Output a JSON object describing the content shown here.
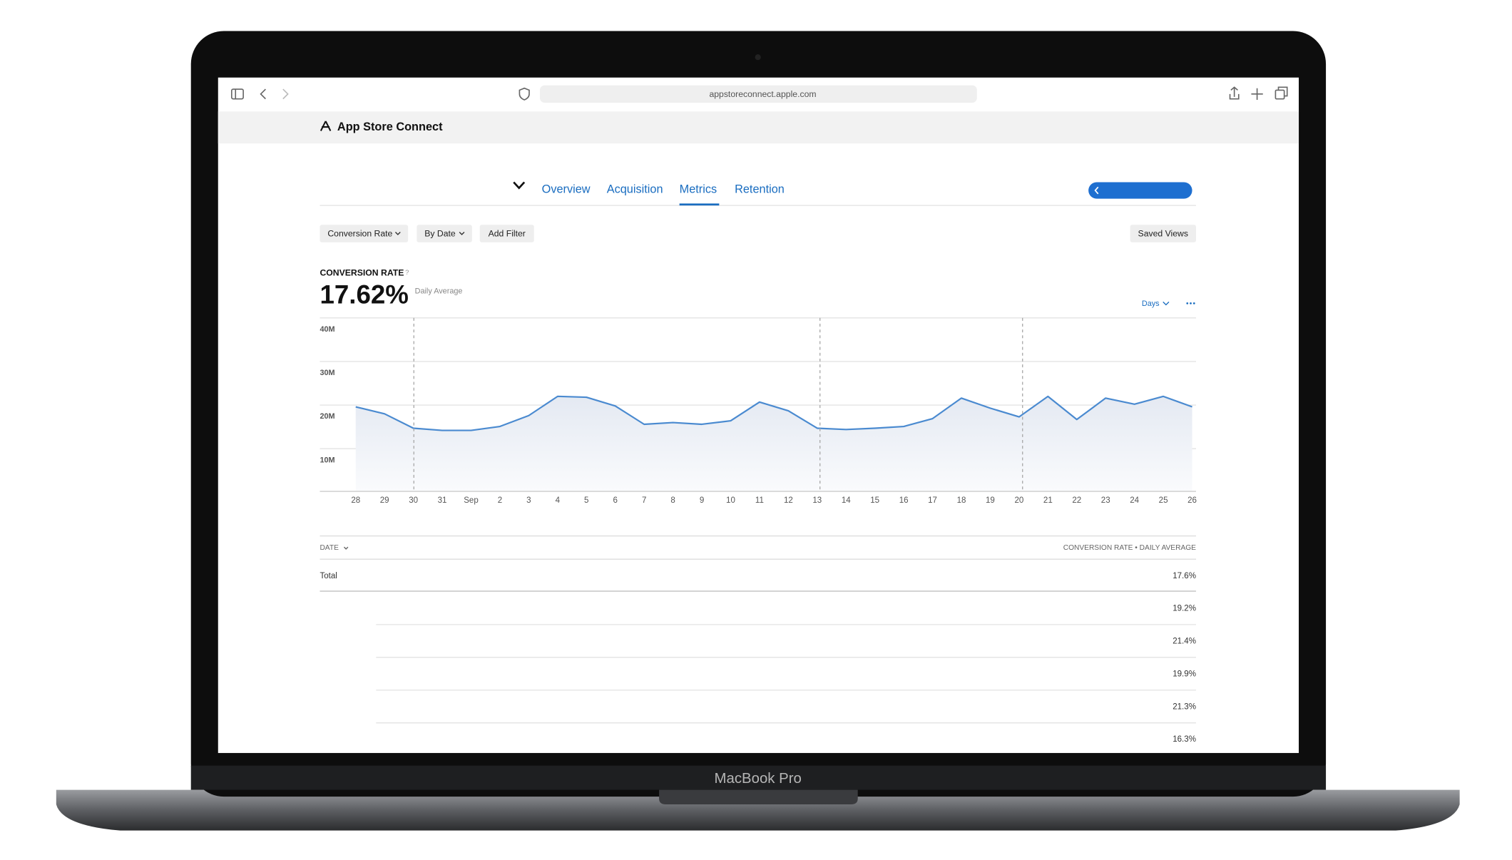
{
  "browser": {
    "url": "appstoreconnect.apple.com"
  },
  "app": {
    "title": "App Store Connect"
  },
  "tabs": [
    "Overview",
    "Acquisition",
    "Metrics",
    "Retention"
  ],
  "filters": [
    "Conversion Rate",
    "By Date",
    "Add Filter"
  ],
  "saved_views": "Saved Views",
  "metric": {
    "label": "CONVERSION RATE",
    "help": "?",
    "value": "17.62%",
    "note": "Daily Average"
  },
  "controls": {
    "period": "Days"
  },
  "chart_data": {
    "type": "line",
    "color": "#4a8ad0",
    "categories": [
      "28",
      "29",
      "30",
      "31",
      "Sep",
      "2",
      "3",
      "4",
      "5",
      "6",
      "7",
      "8",
      "9",
      "10",
      "11",
      "12",
      "13",
      "14",
      "15",
      "16",
      "17",
      "18",
      "19",
      "20",
      "21",
      "22",
      "23",
      "24",
      "25",
      "26"
    ],
    "values": [
      19600000,
      18000000,
      14700000,
      14200000,
      14200000,
      15100000,
      17600000,
      22000000,
      21800000,
      19800000,
      15600000,
      16000000,
      15600000,
      16400000,
      20700000,
      18700000,
      14700000,
      14400000,
      14700000,
      15100000,
      16900000,
      21600000,
      19300000,
      17300000,
      22000000,
      16700000,
      21600000,
      20200000,
      22000000,
      19600000
    ],
    "ylim": [
      0,
      40000000
    ],
    "yticks": [
      {
        "value": 10000000,
        "label": "10M"
      },
      {
        "value": 20000000,
        "label": "20M"
      },
      {
        "value": 30000000,
        "label": "30M"
      },
      {
        "value": 40000000,
        "label": "40M"
      }
    ],
    "grid": true
  },
  "table": {
    "headers": [
      "DATE",
      "CONVERSION RATE • DAILY AVERAGE"
    ],
    "total": {
      "label": "Total",
      "value": "17.6%"
    },
    "rows": [
      "19.2%",
      "21.4%",
      "19.9%",
      "21.3%",
      "16.3%"
    ]
  },
  "device": {
    "label": "MacBook Pro"
  }
}
